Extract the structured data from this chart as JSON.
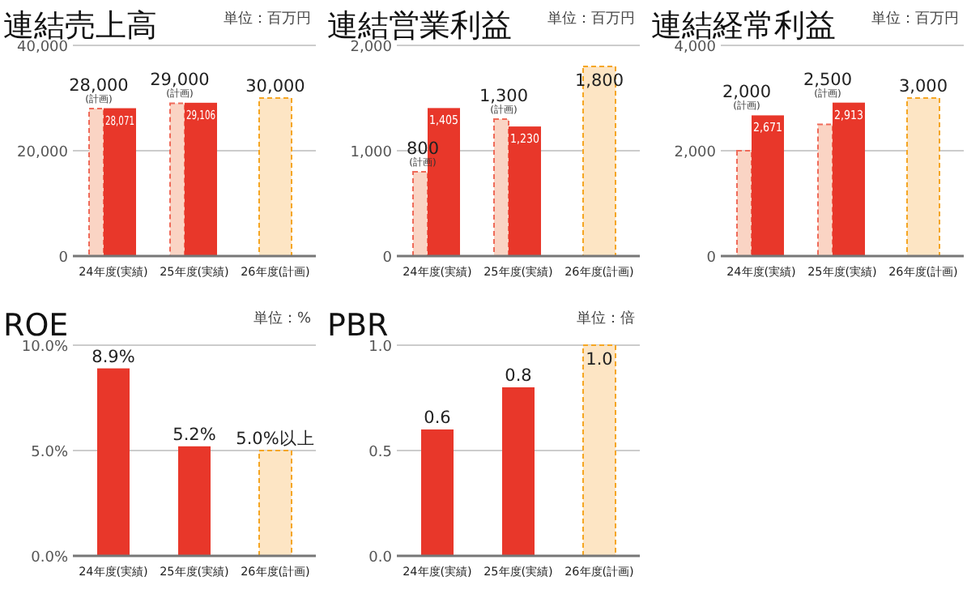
{
  "chart_data": [
    {
      "type": "bar",
      "title": "連結売上高",
      "subtitle": "単位：百万円",
      "categories": [
        "24年度(実績)",
        "25年度(実績)",
        "26年度(計画)"
      ],
      "ylim": [
        0,
        40000
      ],
      "yticks": [
        {
          "value": 0,
          "label": "0"
        },
        {
          "value": 20000,
          "label": "20,000"
        },
        {
          "value": 40000,
          "label": "40,000"
        }
      ],
      "grid": "y",
      "series": [
        {
          "values": [
            28000,
            29000,
            30000
          ],
          "colors": [
            "#fad4c4",
            "#fad4c4",
            "#fde5c4"
          ],
          "line_style": "dashed",
          "value_labels": [
            "28,000 (計画)",
            "29,000 (計画)",
            "30,000"
          ]
        },
        {
          "values": [
            28071,
            29106,
            null
          ],
          "color": "#e8372a",
          "value_labels": [
            "28,071",
            "29,106",
            null
          ]
        }
      ]
    },
    {
      "type": "bar",
      "title": "連結営業利益",
      "subtitle": "単位：百万円",
      "categories": [
        "24年度(実績)",
        "25年度(実績)",
        "26年度(計画)"
      ],
      "ylim": [
        0,
        2000
      ],
      "yticks": [
        {
          "value": 0,
          "label": "0"
        },
        {
          "value": 1000,
          "label": "1,000"
        },
        {
          "value": 2000,
          "label": "2,000"
        }
      ],
      "grid": "y",
      "series": [
        {
          "values": [
            800,
            1300,
            1800
          ],
          "colors": [
            "#fad4c4",
            "#fad4c4",
            "#fde5c4"
          ],
          "line_style": "dashed",
          "value_labels": [
            "800 (計画)",
            "1,300 (計画)",
            "1,800"
          ]
        },
        {
          "values": [
            1405,
            1230,
            null
          ],
          "color": "#e8372a",
          "value_labels": [
            "1,405",
            "1,230",
            null
          ]
        }
      ]
    },
    {
      "type": "bar",
      "title": "連結経常利益",
      "subtitle": "単位：百万円",
      "categories": [
        "24年度(実績)",
        "25年度(実績)",
        "26年度(計画)"
      ],
      "ylim": [
        0,
        4000
      ],
      "yticks": [
        {
          "value": 0,
          "label": "0"
        },
        {
          "value": 2000,
          "label": "2,000"
        },
        {
          "value": 4000,
          "label": "4,000"
        }
      ],
      "grid": "y",
      "series": [
        {
          "values": [
            2000,
            2500,
            3000
          ],
          "colors": [
            "#fad4c4",
            "#fad4c4",
            "#fde5c4"
          ],
          "line_style": "dashed",
          "value_labels": [
            "2,000 (計画)",
            "2,500 (計画)",
            "3,000"
          ]
        },
        {
          "values": [
            2671,
            2913,
            null
          ],
          "color": "#e8372a",
          "value_labels": [
            "2,671",
            "2,913",
            null
          ]
        }
      ]
    },
    {
      "type": "bar",
      "title": "ROE",
      "subtitle": "単位：%",
      "categories": [
        "24年度(実績)",
        "25年度(実績)",
        "26年度(計画)"
      ],
      "ylim": [
        0,
        10
      ],
      "yticks": [
        {
          "value": 0,
          "label": "0.0%"
        },
        {
          "value": 5,
          "label": "5.0%"
        },
        {
          "value": 10,
          "label": "10.0%"
        }
      ],
      "grid": "y",
      "series": [
        {
          "values": [
            null,
            null,
            5.0
          ],
          "colors": [
            null,
            null,
            "#fde5c4"
          ],
          "line_style": "dashed",
          "value_labels": [
            null,
            null,
            "5.0%以上"
          ]
        },
        {
          "values": [
            8.9,
            5.2,
            null
          ],
          "color": "#e8372a",
          "value_labels": [
            "8.9%",
            "5.2%",
            null
          ]
        }
      ]
    },
    {
      "type": "bar",
      "title": "PBR",
      "subtitle": "単位：倍",
      "categories": [
        "24年度(実績)",
        "25年度(実績)",
        "26年度(計画)"
      ],
      "ylim": [
        0,
        1.0
      ],
      "yticks": [
        {
          "value": 0,
          "label": "0.0"
        },
        {
          "value": 0.5,
          "label": "0.5"
        },
        {
          "value": 1.0,
          "label": "1.0"
        }
      ],
      "grid": "y",
      "series": [
        {
          "values": [
            null,
            null,
            1.0
          ],
          "colors": [
            null,
            null,
            "#fde5c4"
          ],
          "line_style": "dashed",
          "value_labels": [
            null,
            null,
            "1.0"
          ]
        },
        {
          "values": [
            0.6,
            0.8,
            null
          ],
          "color": "#e8372a",
          "value_labels": [
            "0.6",
            "0.8",
            null
          ]
        }
      ]
    }
  ]
}
